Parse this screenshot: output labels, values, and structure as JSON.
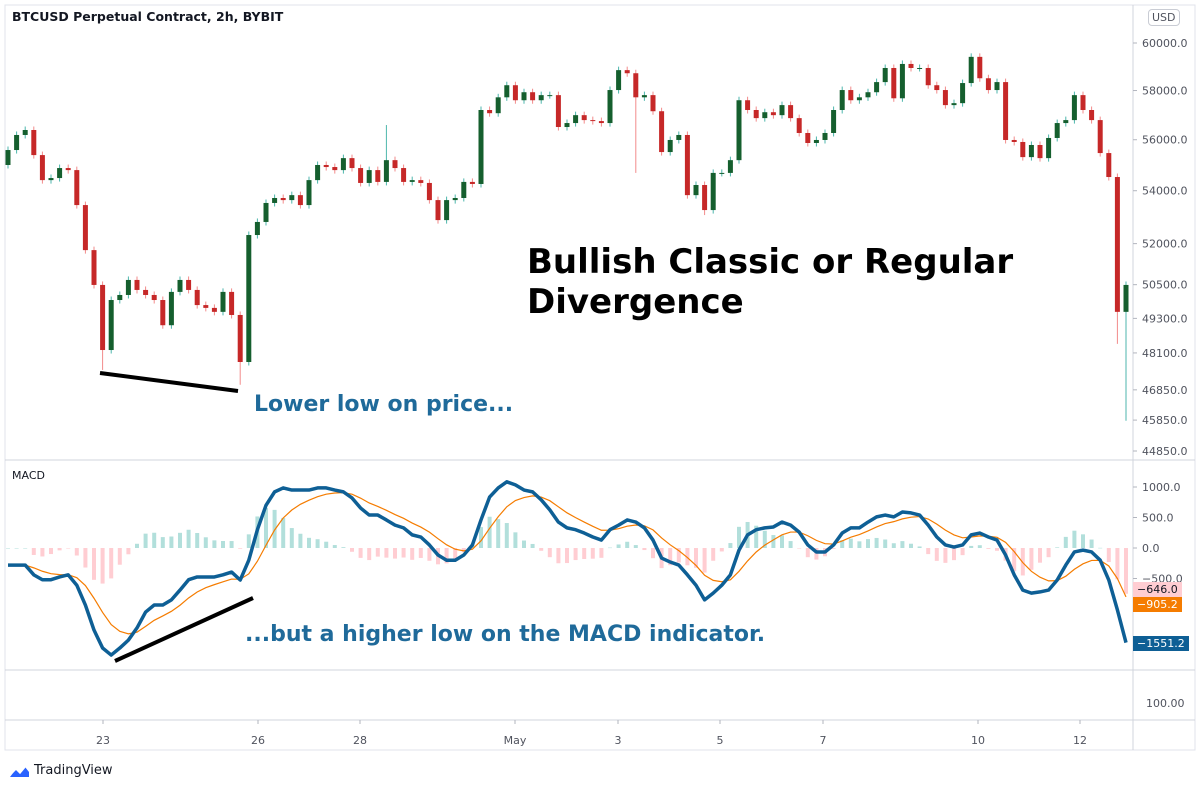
{
  "header": {
    "title": "BTCUSD Perpetual Contract, 2h, BYBIT",
    "currency": "USD"
  },
  "annotations": {
    "heading": "Bullish Classic or Regular Divergence",
    "price_note": "Lower low on price...",
    "macd_note": "...but a higher low on the MACD indicator."
  },
  "indicator": {
    "name": "MACD",
    "lower_pane_label": "100.00"
  },
  "brand": "TradingView",
  "colors": {
    "up_body": "#155f2e",
    "up_wick": "#4db6ac",
    "down_body": "#c62828",
    "down_wick": "#f28b8b",
    "macd": "#0e5f95",
    "signal": "#f57c00",
    "hist_pos": "#b2dfdb",
    "hist_neg": "#ffcdd2"
  },
  "chart_data": [
    {
      "type": "candlestick",
      "title": "BTCUSD Perpetual Contract, 2h, BYBIT",
      "y_scale": "log",
      "y_ticks": [
        "60000.0",
        "58000.0",
        "56000.0",
        "54000.0",
        "52000.0",
        "50500.0",
        "49300.0",
        "48100.0",
        "46850.0",
        "45850.0",
        "44850.0"
      ],
      "x_ticks": [
        "23",
        "26",
        "28",
        "May",
        "3",
        "5",
        "7",
        "10",
        "12"
      ],
      "first_open": 55000,
      "close": [
        55590,
        56190,
        56390,
        55390,
        54410,
        54490,
        54880,
        54800,
        53450,
        51760,
        50490,
        48200,
        49950,
        50130,
        50670,
        50310,
        50130,
        49950,
        49060,
        50240,
        50670,
        50310,
        49770,
        49670,
        49530,
        50240,
        49420,
        47790,
        52320,
        52810,
        53530,
        53720,
        53640,
        53830,
        53450,
        54410,
        55000,
        54920,
        54800,
        55270,
        54880,
        54300,
        54800,
        54340,
        55190,
        54880,
        54340,
        54410,
        54300,
        53640,
        52880,
        53640,
        53720,
        54340,
        54260,
        57200,
        57070,
        57720,
        58220,
        57600,
        57930,
        57600,
        57810,
        57810,
        56510,
        56670,
        56990,
        56790,
        56750,
        56670,
        58020,
        58850,
        58720,
        57720,
        57810,
        57150,
        55510,
        55990,
        56190,
        53830,
        54220,
        53260,
        54690,
        54690,
        55190,
        57600,
        57200,
        56870,
        57110,
        56990,
        57400,
        56870,
        56270,
        55870,
        55990,
        56270,
        57200,
        58020,
        57600,
        57720,
        57930,
        58350,
        58940,
        57680,
        59110,
        58940,
        58940,
        58220,
        58020,
        57400,
        57480,
        58310,
        59410,
        58510,
        58020,
        58350,
        55990,
        55910,
        55310,
        55790,
        55270,
        56070,
        56670,
        56790,
        57810,
        57200,
        56790,
        55470,
        54530,
        49530,
        50490
      ],
      "wick_extremes": [
        {
          "index": 11,
          "low": 47520
        },
        {
          "index": 27,
          "low": 47020
        },
        {
          "index": 44,
          "high": 56590
        },
        {
          "index": 73,
          "low": 54690
        },
        {
          "index": 81,
          "low": 53070
        },
        {
          "index": 129,
          "low": 48410
        },
        {
          "index": 130,
          "low": 45830
        }
      ]
    },
    {
      "type": "line",
      "title": "MACD",
      "y_ticks": [
        "1000.0",
        "500.0",
        "0.0",
        "-500.0"
      ],
      "macd": [
        -280,
        -280,
        -280,
        -440,
        -520,
        -520,
        -475,
        -440,
        -610,
        -935,
        -1345,
        -1640,
        -1755,
        -1640,
        -1510,
        -1310,
        -1050,
        -935,
        -935,
        -850,
        -690,
        -520,
        -475,
        -475,
        -475,
        -440,
        -395,
        -525,
        -200,
        300,
        700,
        920,
        985,
        950,
        950,
        950,
        985,
        985,
        950,
        920,
        820,
        655,
        540,
        540,
        460,
        375,
        330,
        215,
        180,
        50,
        -115,
        -200,
        -200,
        -115,
        50,
        460,
        835,
        985,
        1085,
        1035,
        950,
        920,
        790,
        625,
        425,
        330,
        300,
        245,
        180,
        130,
        300,
        375,
        460,
        425,
        330,
        130,
        -165,
        -230,
        -280,
        -440,
        -610,
        -850,
        -740,
        -610,
        -440,
        -35,
        215,
        300,
        330,
        345,
        425,
        375,
        260,
        50,
        -65,
        -65,
        50,
        245,
        330,
        330,
        425,
        510,
        540,
        510,
        590,
        575,
        540,
        375,
        180,
        50,
        15,
        50,
        215,
        245,
        180,
        130,
        -115,
        -440,
        -690,
        -740,
        -720,
        -690,
        -525,
        -280,
        -65,
        -35,
        -65,
        -200,
        -525,
        -1015,
        -1551.2
      ],
      "last_values": {
        "histogram": "−646.0",
        "signal": "−905.2",
        "macd": "−1551.2"
      }
    }
  ]
}
